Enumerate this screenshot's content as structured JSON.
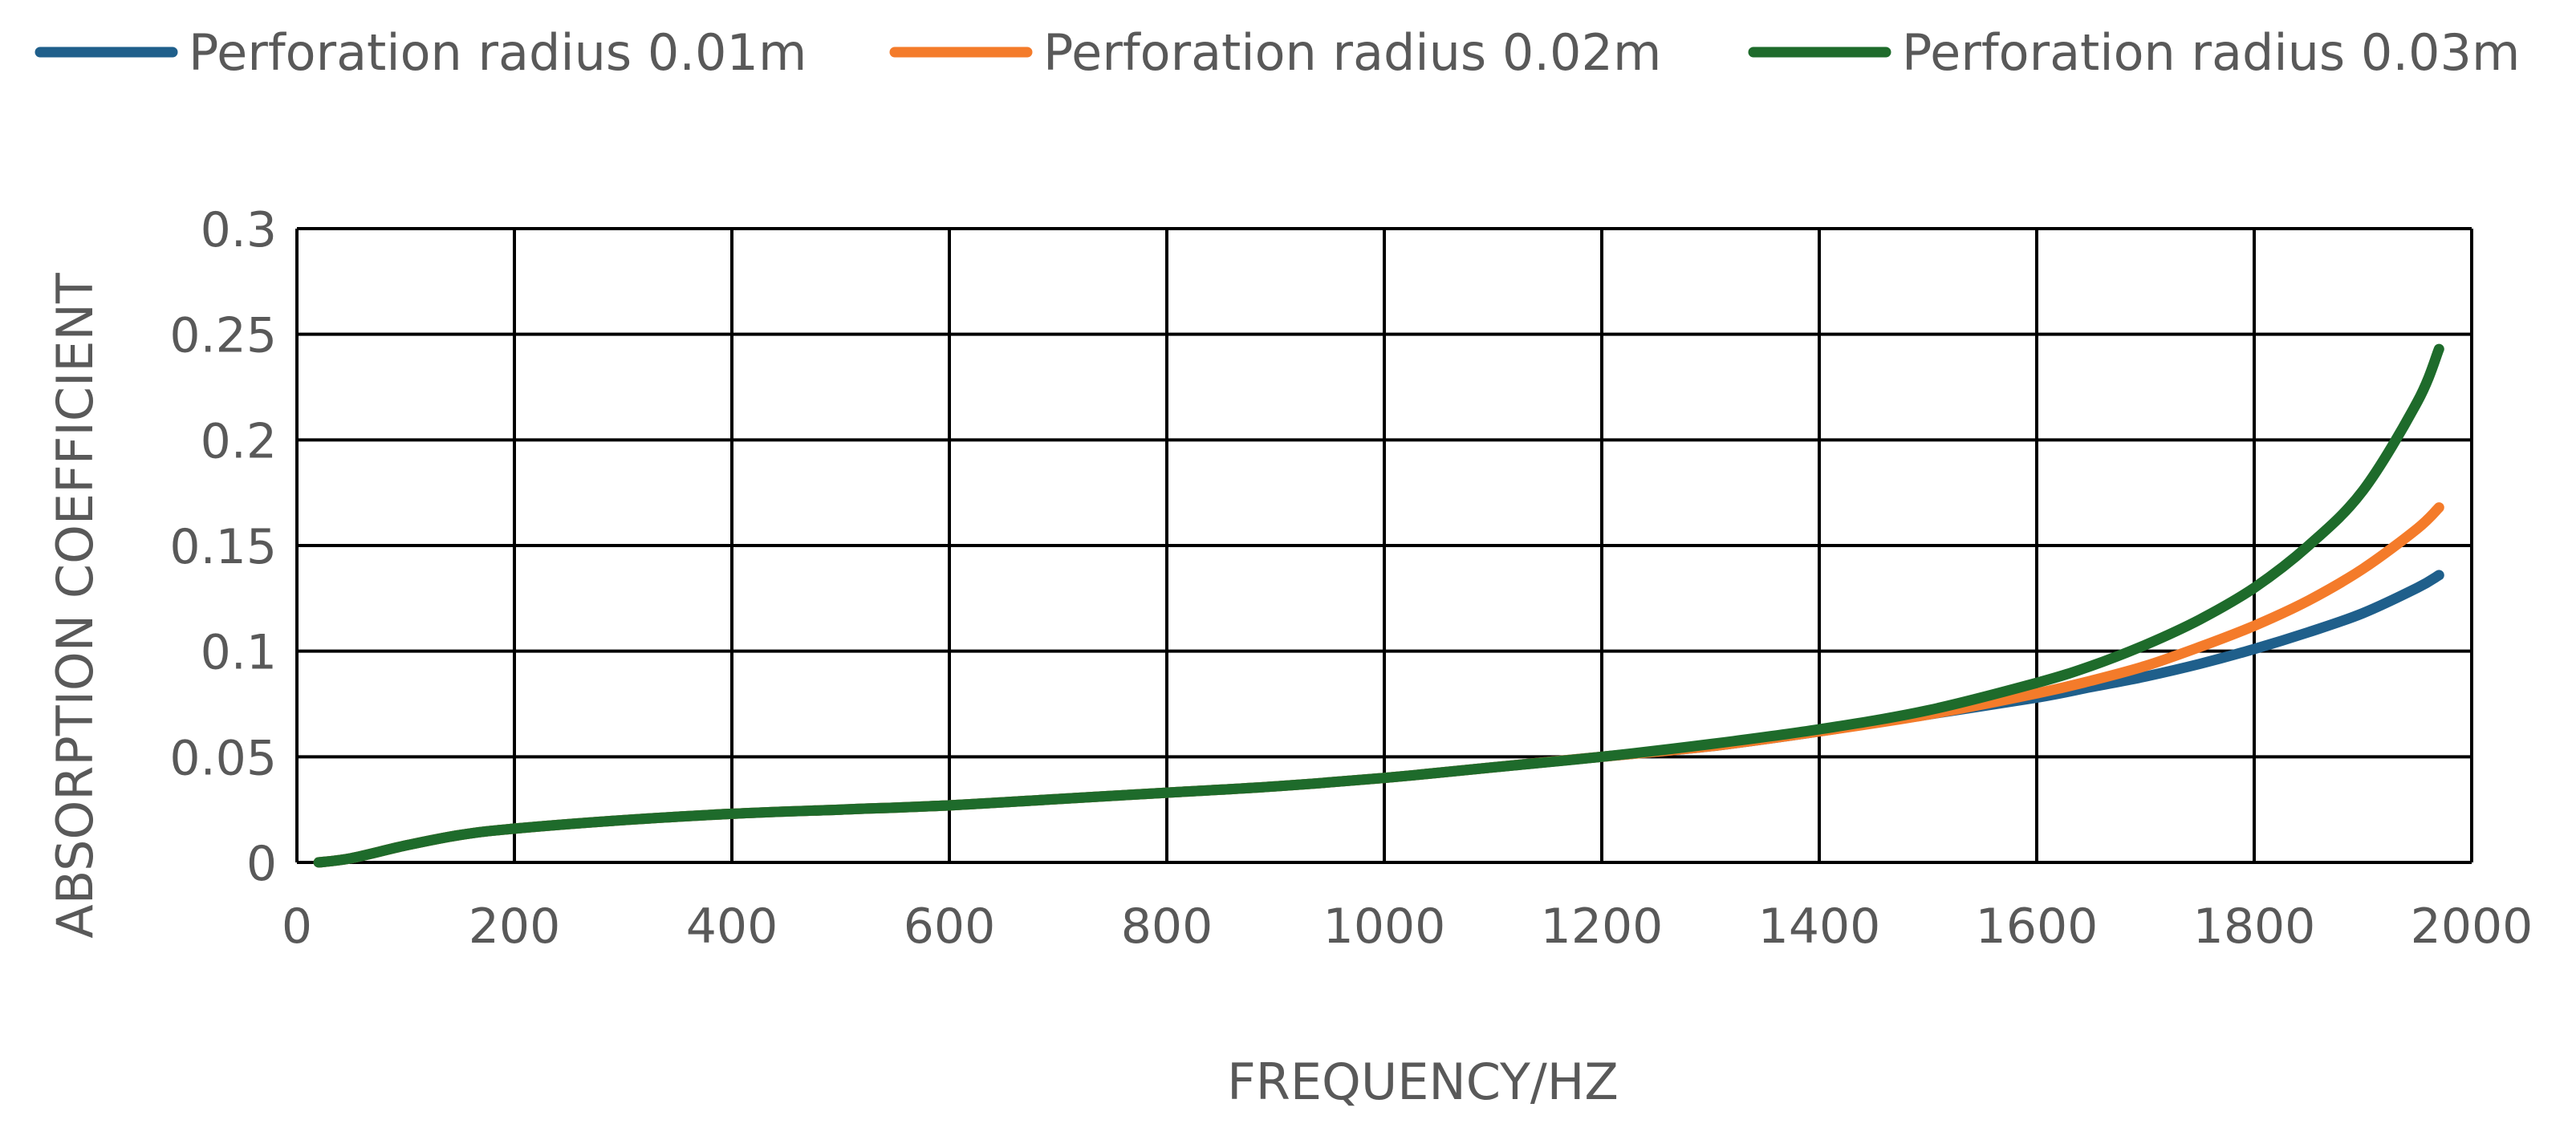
{
  "chart_data": {
    "type": "line",
    "xlabel": "FREQUENCY/HZ",
    "ylabel": "ABSORPTION COEFFICIENT",
    "xlim": [
      0,
      2000
    ],
    "ylim": [
      0,
      0.3
    ],
    "xticks": [
      "0",
      "200",
      "400",
      "600",
      "800",
      "1000",
      "1200",
      "1400",
      "1600",
      "1800",
      "2000"
    ],
    "yticks": [
      "0",
      "0.05",
      "0.1",
      "0.15",
      "0.2",
      "0.25",
      "0.3"
    ],
    "grid": true,
    "legend_position": "top",
    "x": [
      20,
      50,
      100,
      150,
      200,
      300,
      400,
      500,
      600,
      700,
      800,
      900,
      1000,
      1100,
      1200,
      1300,
      1400,
      1500,
      1600,
      1650,
      1700,
      1750,
      1800,
      1850,
      1900,
      1950,
      1970
    ],
    "series": [
      {
        "name": "Perforation radius 0.01m",
        "color": "#1f5f8b",
        "values": [
          0.0,
          0.002,
          0.008,
          0.013,
          0.016,
          0.02,
          0.023,
          0.025,
          0.027,
          0.03,
          0.033,
          0.036,
          0.04,
          0.045,
          0.05,
          0.055,
          0.062,
          0.07,
          0.078,
          0.083,
          0.088,
          0.094,
          0.101,
          0.109,
          0.118,
          0.13,
          0.136
        ]
      },
      {
        "name": "Perforation radius 0.02m",
        "color": "#f47b2a",
        "values": [
          0.0,
          0.002,
          0.008,
          0.013,
          0.016,
          0.02,
          0.023,
          0.025,
          0.027,
          0.03,
          0.033,
          0.036,
          0.04,
          0.045,
          0.05,
          0.055,
          0.062,
          0.07,
          0.08,
          0.086,
          0.093,
          0.102,
          0.112,
          0.124,
          0.139,
          0.158,
          0.168
        ]
      },
      {
        "name": "Perforation radius 0.03m",
        "color": "#1e6b2b",
        "values": [
          0.0,
          0.002,
          0.008,
          0.013,
          0.016,
          0.02,
          0.023,
          0.025,
          0.027,
          0.03,
          0.033,
          0.036,
          0.04,
          0.045,
          0.05,
          0.056,
          0.063,
          0.072,
          0.085,
          0.093,
          0.103,
          0.115,
          0.13,
          0.15,
          0.176,
          0.218,
          0.243
        ]
      }
    ]
  }
}
